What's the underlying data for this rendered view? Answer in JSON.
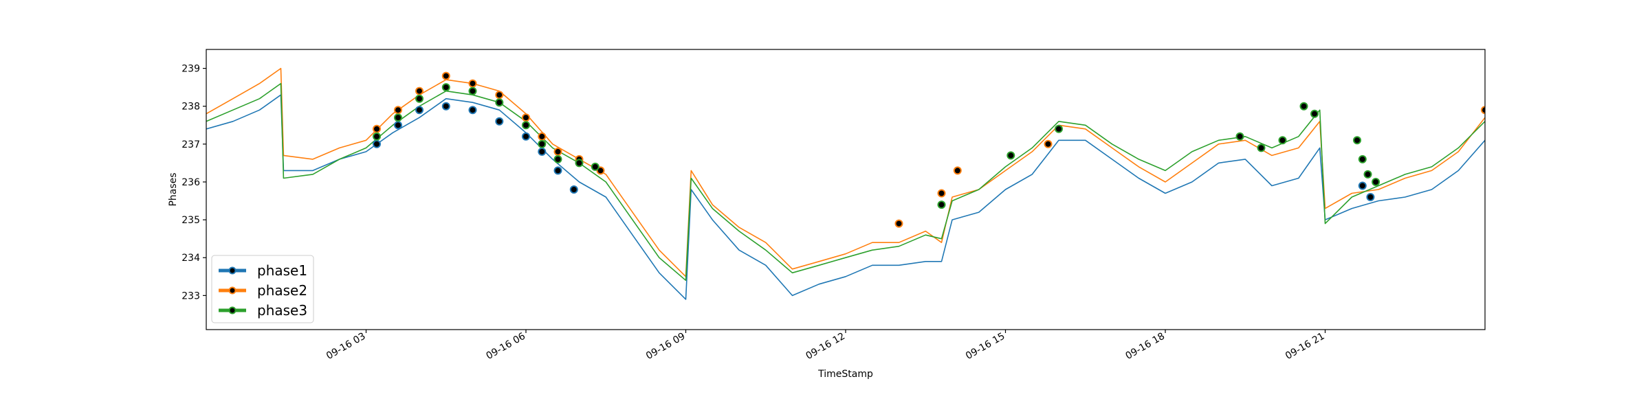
{
  "chart_data": {
    "type": "line",
    "xlabel": "TimeStamp",
    "ylabel": "Phases",
    "x_range_hours": [
      0,
      24
    ],
    "ylim": [
      232.1,
      239.5
    ],
    "y_ticks": [
      233,
      234,
      235,
      236,
      237,
      238,
      239
    ],
    "x_ticks": [
      {
        "hour": 3,
        "label": "09-16 03"
      },
      {
        "hour": 6,
        "label": "09-16 06"
      },
      {
        "hour": 9,
        "label": "09-16 09"
      },
      {
        "hour": 12,
        "label": "09-16 12"
      },
      {
        "hour": 15,
        "label": "09-16 15"
      },
      {
        "hour": 18,
        "label": "09-16 18"
      },
      {
        "hour": 21,
        "label": "09-16 21"
      }
    ],
    "grid": false,
    "legend_position": "lower-left",
    "series": [
      {
        "name": "phase1",
        "color": "#1f77b4",
        "x": [
          0,
          0.5,
          1,
          1.4,
          1.45,
          2,
          2.5,
          3,
          3.5,
          4,
          4.5,
          5,
          5.5,
          6,
          6.5,
          7,
          7.5,
          8,
          8.5,
          9,
          9.1,
          9.5,
          10,
          10.5,
          11,
          11.5,
          12,
          12.5,
          13,
          13.5,
          13.8,
          14,
          14.5,
          15,
          15.5,
          16,
          16.5,
          17,
          17.5,
          18,
          18.5,
          19,
          19.5,
          20,
          20.5,
          20.9,
          21,
          21.5,
          22,
          22.5,
          23,
          23.5,
          24
        ],
        "values": [
          237.4,
          237.6,
          237.9,
          238.3,
          236.3,
          236.3,
          236.6,
          236.8,
          237.3,
          237.7,
          238.2,
          238.1,
          237.9,
          237.3,
          236.6,
          236.0,
          235.6,
          234.6,
          233.6,
          232.9,
          235.8,
          235.0,
          234.2,
          233.8,
          233.0,
          233.3,
          233.5,
          233.8,
          233.8,
          233.9,
          233.9,
          235.0,
          235.2,
          235.8,
          236.2,
          237.1,
          237.1,
          236.6,
          236.1,
          235.7,
          236.0,
          236.5,
          236.6,
          235.9,
          236.1,
          236.9,
          235.0,
          235.3,
          235.5,
          235.6,
          235.8,
          236.3,
          237.1
        ],
        "markers": [
          {
            "x": 3.2,
            "y": 237.0
          },
          {
            "x": 3.6,
            "y": 237.5
          },
          {
            "x": 4.0,
            "y": 237.9
          },
          {
            "x": 4.5,
            "y": 238.0
          },
          {
            "x": 5.0,
            "y": 237.9
          },
          {
            "x": 5.5,
            "y": 237.6
          },
          {
            "x": 6.0,
            "y": 237.2
          },
          {
            "x": 6.3,
            "y": 236.8
          },
          {
            "x": 6.6,
            "y": 236.3
          },
          {
            "x": 6.9,
            "y": 235.8
          },
          {
            "x": 21.7,
            "y": 235.9
          },
          {
            "x": 21.85,
            "y": 235.6
          }
        ]
      },
      {
        "name": "phase2",
        "color": "#ff7f0e",
        "x": [
          0,
          0.5,
          1,
          1.4,
          1.45,
          2,
          2.5,
          3,
          3.5,
          4,
          4.5,
          5,
          5.5,
          6,
          6.5,
          7,
          7.5,
          8,
          8.5,
          9,
          9.1,
          9.5,
          10,
          10.5,
          11,
          11.5,
          12,
          12.5,
          13,
          13.5,
          13.8,
          14,
          14.5,
          15,
          15.5,
          16,
          16.5,
          17,
          17.5,
          18,
          18.5,
          19,
          19.5,
          20,
          20.5,
          20.9,
          21,
          21.5,
          22,
          22.5,
          23,
          23.5,
          24
        ],
        "values": [
          237.8,
          238.2,
          238.6,
          239.0,
          236.7,
          236.6,
          236.9,
          237.1,
          237.8,
          238.3,
          238.7,
          238.6,
          238.4,
          237.8,
          237.0,
          236.6,
          236.2,
          235.2,
          234.2,
          233.5,
          236.3,
          235.4,
          234.8,
          234.4,
          233.7,
          233.9,
          234.1,
          234.4,
          234.4,
          234.7,
          234.4,
          235.6,
          235.8,
          236.3,
          236.8,
          237.5,
          237.4,
          236.9,
          236.4,
          236.0,
          236.5,
          237.0,
          237.1,
          236.7,
          236.9,
          237.6,
          235.3,
          235.7,
          235.8,
          236.1,
          236.3,
          236.8,
          237.7
        ],
        "markers": [
          {
            "x": 3.2,
            "y": 237.4
          },
          {
            "x": 3.6,
            "y": 237.9
          },
          {
            "x": 4.0,
            "y": 238.4
          },
          {
            "x": 4.5,
            "y": 238.8
          },
          {
            "x": 5.0,
            "y": 238.6
          },
          {
            "x": 5.5,
            "y": 238.3
          },
          {
            "x": 6.0,
            "y": 237.7
          },
          {
            "x": 6.3,
            "y": 237.2
          },
          {
            "x": 6.6,
            "y": 236.8
          },
          {
            "x": 7.0,
            "y": 236.6
          },
          {
            "x": 7.4,
            "y": 236.3
          },
          {
            "x": 13.0,
            "y": 234.9
          },
          {
            "x": 13.8,
            "y": 235.7
          },
          {
            "x": 14.1,
            "y": 236.3
          },
          {
            "x": 15.8,
            "y": 237.0
          },
          {
            "x": 24.0,
            "y": 237.9
          }
        ]
      },
      {
        "name": "phase3",
        "color": "#2ca02c",
        "x": [
          0,
          0.5,
          1,
          1.4,
          1.45,
          2,
          2.5,
          3,
          3.5,
          4,
          4.5,
          5,
          5.5,
          6,
          6.5,
          7,
          7.5,
          8,
          8.5,
          9,
          9.1,
          9.5,
          10,
          10.5,
          11,
          11.5,
          12,
          12.5,
          13,
          13.5,
          13.8,
          14,
          14.5,
          15,
          15.5,
          16,
          16.5,
          17,
          17.5,
          18,
          18.5,
          19,
          19.5,
          20,
          20.5,
          20.9,
          21,
          21.5,
          22,
          22.5,
          23,
          23.5,
          24
        ],
        "values": [
          237.6,
          237.9,
          238.2,
          238.6,
          236.1,
          236.2,
          236.6,
          236.9,
          237.5,
          238.0,
          238.4,
          238.3,
          238.1,
          237.6,
          236.9,
          236.5,
          236.0,
          235.0,
          234.0,
          233.4,
          236.1,
          235.3,
          234.7,
          234.2,
          233.6,
          233.8,
          234.0,
          234.2,
          234.3,
          234.6,
          234.5,
          235.5,
          235.8,
          236.4,
          236.9,
          237.6,
          237.5,
          237.0,
          236.6,
          236.3,
          236.8,
          237.1,
          237.2,
          236.9,
          237.2,
          237.9,
          234.9,
          235.6,
          235.9,
          236.2,
          236.4,
          236.9,
          237.6
        ],
        "markers": [
          {
            "x": 3.2,
            "y": 237.2
          },
          {
            "x": 3.6,
            "y": 237.7
          },
          {
            "x": 4.0,
            "y": 238.2
          },
          {
            "x": 4.5,
            "y": 238.5
          },
          {
            "x": 5.0,
            "y": 238.4
          },
          {
            "x": 5.5,
            "y": 238.1
          },
          {
            "x": 6.0,
            "y": 237.5
          },
          {
            "x": 6.3,
            "y": 237.0
          },
          {
            "x": 6.6,
            "y": 236.6
          },
          {
            "x": 7.0,
            "y": 236.5
          },
          {
            "x": 7.3,
            "y": 236.4
          },
          {
            "x": 13.8,
            "y": 235.4
          },
          {
            "x": 15.1,
            "y": 236.7
          },
          {
            "x": 16.0,
            "y": 237.4
          },
          {
            "x": 19.4,
            "y": 237.2
          },
          {
            "x": 19.8,
            "y": 236.9
          },
          {
            "x": 20.2,
            "y": 237.1
          },
          {
            "x": 20.6,
            "y": 238.0
          },
          {
            "x": 20.8,
            "y": 237.8
          },
          {
            "x": 21.6,
            "y": 237.1
          },
          {
            "x": 21.7,
            "y": 236.6
          },
          {
            "x": 21.8,
            "y": 236.2
          },
          {
            "x": 21.95,
            "y": 236.0
          }
        ]
      }
    ]
  }
}
